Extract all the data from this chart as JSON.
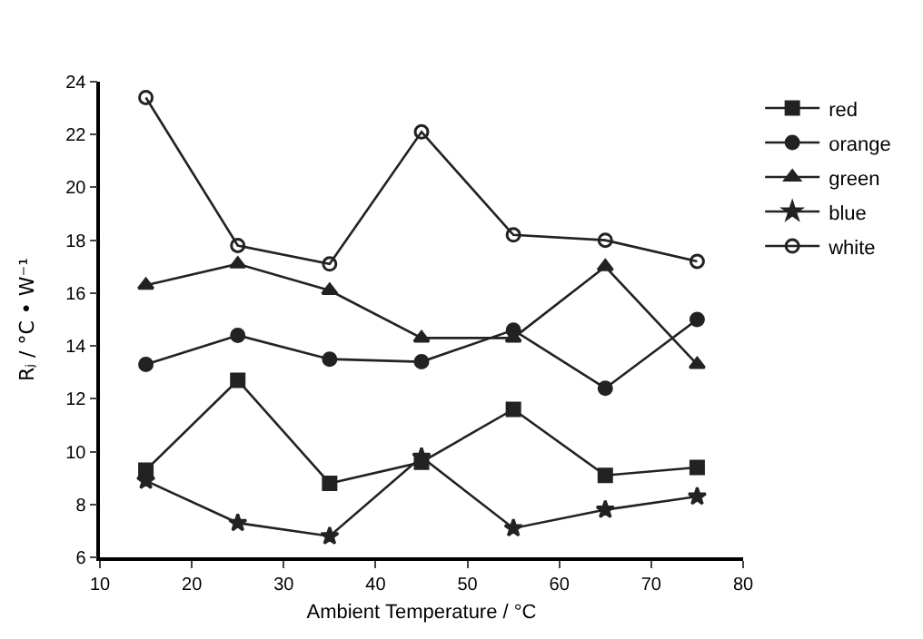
{
  "chart_data": {
    "type": "line",
    "xlabel": "Ambient Temperature / °C",
    "ylabel": "Rⱼ / °C • W⁻¹",
    "x": [
      15,
      25,
      35,
      45,
      55,
      65,
      75
    ],
    "series": [
      {
        "name": "red",
        "color": "#222222",
        "marker": "square",
        "values": [
          9.3,
          12.7,
          8.8,
          9.6,
          11.6,
          9.1,
          9.4
        ]
      },
      {
        "name": "orange",
        "color": "#222222",
        "marker": "circle",
        "values": [
          13.3,
          14.4,
          13.5,
          13.4,
          14.6,
          12.4,
          15.0
        ]
      },
      {
        "name": "green",
        "color": "#222222",
        "marker": "triangle",
        "values": [
          16.3,
          17.1,
          16.1,
          14.3,
          14.3,
          17.0,
          13.3
        ]
      },
      {
        "name": "blue",
        "color": "#222222",
        "marker": "star",
        "values": [
          8.9,
          7.3,
          6.8,
          9.8,
          7.1,
          7.8,
          8.3
        ]
      },
      {
        "name": "white",
        "color": "#222222",
        "marker": "circle-open",
        "values": [
          23.4,
          17.8,
          17.1,
          22.1,
          18.2,
          18.0,
          17.2
        ]
      }
    ],
    "xlim": [
      10,
      80
    ],
    "xticks": [
      10,
      20,
      30,
      40,
      50,
      60,
      70,
      80
    ],
    "ylim": [
      6,
      24
    ],
    "yticks": [
      6,
      8,
      10,
      12,
      14,
      16,
      18,
      20,
      22,
      24
    ],
    "grid": false,
    "legend": "top right",
    "line_style": "solid"
  }
}
